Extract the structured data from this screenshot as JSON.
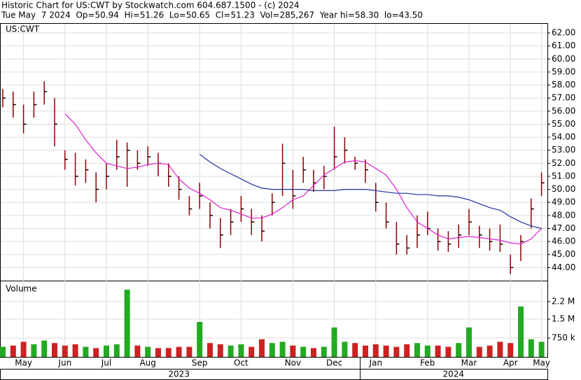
{
  "chart_data": {
    "type": "stock",
    "title": "Historic Chart for US:CWT by Stockwatch.com 604.687.1500 - (c) 2024",
    "subtitle": "Tue May  7 2024  Op=50.94  Hi=51.26  Lo=50.65  Cl=51.23  Vol=285,267  Year hi=58.30  lo=43.50",
    "symbol_label": "US:CWT",
    "volume_label": "Volume",
    "categories": [
      null,
      null,
      "May",
      null,
      null,
      null,
      "Jun",
      null,
      null,
      null,
      "Jul",
      null,
      null,
      null,
      "Aug",
      null,
      null,
      null,
      null,
      "Sep",
      null,
      null,
      null,
      "Oct",
      null,
      null,
      null,
      null,
      "Nov",
      null,
      null,
      null,
      "Dec",
      null,
      null,
      null,
      "Jan",
      null,
      null,
      null,
      null,
      "Feb",
      null,
      null,
      null,
      "Mar",
      null,
      null,
      null,
      "Apr",
      null,
      null,
      "May"
    ],
    "years": [
      {
        "label": "2023",
        "from": 0,
        "to": 34
      },
      {
        "label": "2024",
        "from": 35,
        "to": 52
      }
    ],
    "price": {
      "color": "#8b0000",
      "high": [
        57.7,
        57.5,
        56.5,
        57.5,
        58.3,
        57.0,
        53.0,
        52.8,
        52.3,
        51.3,
        52.0,
        53.8,
        53.6,
        53.0,
        53.3,
        52.8,
        52.0,
        51.0,
        49.5,
        50.5,
        49.0,
        47.8,
        48.5,
        49.5,
        48.5,
        48.0,
        49.7,
        53.5,
        51.5,
        52.5,
        51.5,
        51.8,
        54.8,
        54.0,
        52.5,
        52.3,
        50.5,
        49.0,
        47.5,
        46.5,
        48.0,
        48.3,
        47.0,
        46.8,
        47.3,
        48.5,
        47.2,
        47.0,
        47.3,
        45.0,
        46.5,
        49.3,
        51.3
      ],
      "low": [
        56.3,
        55.5,
        54.3,
        55.5,
        56.5,
        53.3,
        51.5,
        50.3,
        50.5,
        49.0,
        50.0,
        51.5,
        50.2,
        51.5,
        51.8,
        51.0,
        50.2,
        49.2,
        48.0,
        48.5,
        47.0,
        45.5,
        46.5,
        47.5,
        46.5,
        46.0,
        48.0,
        49.5,
        48.5,
        50.5,
        49.8,
        50.0,
        51.5,
        52.0,
        51.5,
        50.5,
        48.3,
        47.0,
        45.0,
        45.0,
        45.5,
        46.5,
        45.3,
        45.2,
        45.5,
        46.5,
        45.5,
        45.3,
        45.2,
        43.5,
        44.5,
        47.0,
        49.5
      ],
      "close": [
        57.0,
        56.5,
        55.0,
        56.5,
        57.5,
        55.0,
        52.3,
        51.0,
        51.5,
        50.0,
        51.0,
        52.5,
        53.0,
        52.0,
        52.5,
        52.0,
        51.0,
        50.0,
        48.5,
        49.5,
        48.0,
        46.5,
        47.5,
        48.5,
        47.5,
        46.8,
        49.0,
        52.0,
        49.5,
        51.5,
        50.5,
        51.0,
        52.5,
        53.0,
        52.0,
        51.5,
        49.0,
        47.5,
        45.8,
        45.5,
        46.5,
        47.0,
        46.0,
        45.8,
        46.5,
        47.5,
        46.5,
        46.0,
        45.8,
        44.0,
        46.0,
        48.5,
        50.5
      ]
    },
    "averages": [
      {
        "color": "#e020d0",
        "values": [
          null,
          null,
          null,
          null,
          null,
          null,
          55.8,
          55.0,
          53.8,
          52.8,
          52.0,
          51.8,
          51.6,
          51.7,
          51.9,
          52.0,
          51.9,
          50.8,
          50.1,
          49.7,
          49.2,
          48.6,
          48.4,
          48.1,
          47.8,
          47.8,
          48.1,
          48.6,
          49.2,
          49.5,
          50.3,
          51.1,
          51.6,
          52.1,
          52.2,
          52.1,
          51.6,
          51.1,
          50.0,
          48.6,
          47.5,
          47.0,
          46.5,
          46.2,
          46.3,
          46.4,
          46.3,
          46.2,
          46.1,
          45.9,
          45.8,
          46.2,
          47.0
        ]
      },
      {
        "color": "#2030a0",
        "values": [
          null,
          null,
          null,
          null,
          null,
          null,
          null,
          null,
          null,
          null,
          null,
          null,
          null,
          null,
          null,
          null,
          null,
          null,
          null,
          52.7,
          52.1,
          51.6,
          51.2,
          50.8,
          50.4,
          50.1,
          50.0,
          50.0,
          50.0,
          50.0,
          49.9,
          49.9,
          49.9,
          50.0,
          50.0,
          50.0,
          49.9,
          49.8,
          49.7,
          49.7,
          49.6,
          49.6,
          49.5,
          49.5,
          49.4,
          49.2,
          48.9,
          48.6,
          48.4,
          47.9,
          47.5,
          47.2,
          47.0
        ]
      }
    ],
    "ylim": [
      43,
      62.7
    ],
    "yticks": [
      {
        "value": 44,
        "label": "44.00"
      },
      {
        "value": 45,
        "label": "45.00"
      },
      {
        "value": 46,
        "label": "46.00"
      },
      {
        "value": 47,
        "label": "47.00"
      },
      {
        "value": 48,
        "label": "48.00"
      },
      {
        "value": 49,
        "label": "49.00"
      },
      {
        "value": 50,
        "label": "50.00"
      },
      {
        "value": 51,
        "label": "51.00"
      },
      {
        "value": 52,
        "label": "52.00"
      },
      {
        "value": 53,
        "label": "53.00"
      },
      {
        "value": 54,
        "label": "54.00"
      },
      {
        "value": 55,
        "label": "55.00"
      },
      {
        "value": 56,
        "label": "56.00"
      },
      {
        "value": 57,
        "label": "57.00"
      },
      {
        "value": 58,
        "label": "58.00"
      },
      {
        "value": 59,
        "label": "59.00"
      },
      {
        "value": 60,
        "label": "60.00"
      },
      {
        "value": 61,
        "label": "61.00"
      },
      {
        "value": 62,
        "label": "62.00"
      }
    ],
    "volume": {
      "up_color": "#22aa22",
      "down_color": "#cc2222",
      "values": [
        400000,
        450000,
        600000,
        500000,
        650000,
        550000,
        450000,
        500000,
        400000,
        350000,
        450000,
        500000,
        2670000,
        450000,
        400000,
        350000,
        350000,
        400000,
        400000,
        1390000,
        550000,
        500000,
        450000,
        500000,
        400000,
        700000,
        550000,
        600000,
        450000,
        400000,
        350000,
        400000,
        1170000,
        600000,
        550000,
        450000,
        500000,
        450000,
        400000,
        500000,
        550000,
        450000,
        450000,
        400000,
        550000,
        1170000,
        400000,
        450000,
        600000,
        550000,
        2000000,
        700000,
        600000
      ],
      "ylim": [
        0,
        3000000
      ],
      "yticks": [
        {
          "value": 750000,
          "label": "750 k"
        },
        {
          "value": 1500000,
          "label": "1.5 M"
        },
        {
          "value": 2200000,
          "label": "2.2 M"
        }
      ]
    },
    "grid": true
  }
}
